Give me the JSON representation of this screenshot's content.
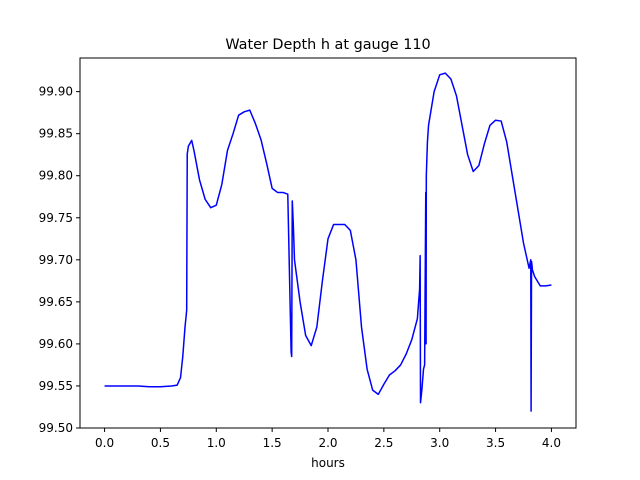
{
  "chart_data": {
    "type": "line",
    "title": "Water Depth h at gauge 110",
    "xlabel": "hours",
    "ylabel": "",
    "xlim": [
      -0.22,
      4.22
    ],
    "ylim": [
      99.5,
      99.94
    ],
    "xticks": [
      0.0,
      0.5,
      1.0,
      1.5,
      2.0,
      2.5,
      3.0,
      3.5,
      4.0
    ],
    "xtick_labels": [
      "0.0",
      "0.5",
      "1.0",
      "1.5",
      "2.0",
      "2.5",
      "3.0",
      "3.5",
      "4.0"
    ],
    "yticks": [
      99.5,
      99.55,
      99.6,
      99.65,
      99.7,
      99.75,
      99.8,
      99.85,
      99.9
    ],
    "ytick_labels": [
      "99.50",
      "99.55",
      "99.60",
      "99.65",
      "99.70",
      "99.75",
      "99.80",
      "99.85",
      "99.90"
    ],
    "grid": false,
    "legend": "none",
    "series": [
      {
        "color": "#0000ff",
        "x": [
          0.0,
          0.1,
          0.2,
          0.3,
          0.4,
          0.5,
          0.6,
          0.65,
          0.68,
          0.7,
          0.72,
          0.735,
          0.74,
          0.75,
          0.78,
          0.8,
          0.85,
          0.9,
          0.95,
          1.0,
          1.05,
          1.1,
          1.15,
          1.2,
          1.25,
          1.3,
          1.35,
          1.4,
          1.45,
          1.5,
          1.55,
          1.6,
          1.64,
          1.67,
          1.675,
          1.68,
          1.682,
          1.69,
          1.7,
          1.75,
          1.8,
          1.85,
          1.9,
          1.95,
          2.0,
          2.05,
          2.1,
          2.15,
          2.2,
          2.25,
          2.3,
          2.35,
          2.4,
          2.45,
          2.5,
          2.55,
          2.6,
          2.65,
          2.7,
          2.75,
          2.8,
          2.82,
          2.825,
          2.828,
          2.84,
          2.855,
          2.865,
          2.875,
          2.878,
          2.88,
          2.885,
          2.89,
          2.9,
          2.95,
          3.0,
          3.05,
          3.1,
          3.15,
          3.2,
          3.25,
          3.3,
          3.35,
          3.4,
          3.45,
          3.5,
          3.55,
          3.6,
          3.65,
          3.7,
          3.75,
          3.8,
          3.815,
          3.818,
          3.822,
          3.825,
          3.83,
          3.85,
          3.9,
          3.95,
          4.0
        ],
        "y": [
          99.55,
          99.55,
          99.55,
          99.55,
          99.549,
          99.549,
          99.55,
          99.551,
          99.56,
          99.585,
          99.62,
          99.64,
          99.826,
          99.835,
          99.842,
          99.83,
          99.795,
          99.772,
          99.762,
          99.765,
          99.79,
          99.83,
          99.85,
          99.872,
          99.876,
          99.878,
          99.862,
          99.843,
          99.815,
          99.785,
          99.78,
          99.78,
          99.778,
          99.59,
          99.585,
          99.77,
          99.765,
          99.74,
          99.7,
          99.65,
          99.61,
          99.598,
          99.62,
          99.675,
          99.725,
          99.742,
          99.742,
          99.742,
          99.735,
          99.7,
          99.62,
          99.57,
          99.545,
          99.54,
          99.552,
          99.563,
          99.568,
          99.575,
          99.588,
          99.605,
          99.63,
          99.665,
          99.705,
          99.53,
          99.545,
          99.57,
          99.575,
          99.78,
          99.6,
          99.8,
          99.82,
          99.84,
          99.86,
          99.9,
          99.92,
          99.922,
          99.915,
          99.895,
          99.86,
          99.825,
          99.805,
          99.812,
          99.838,
          99.86,
          99.866,
          99.865,
          99.84,
          99.8,
          99.76,
          99.72,
          99.69,
          99.7,
          99.52,
          99.698,
          99.695,
          99.688,
          99.68,
          99.669,
          99.669,
          99.67
        ]
      }
    ]
  }
}
